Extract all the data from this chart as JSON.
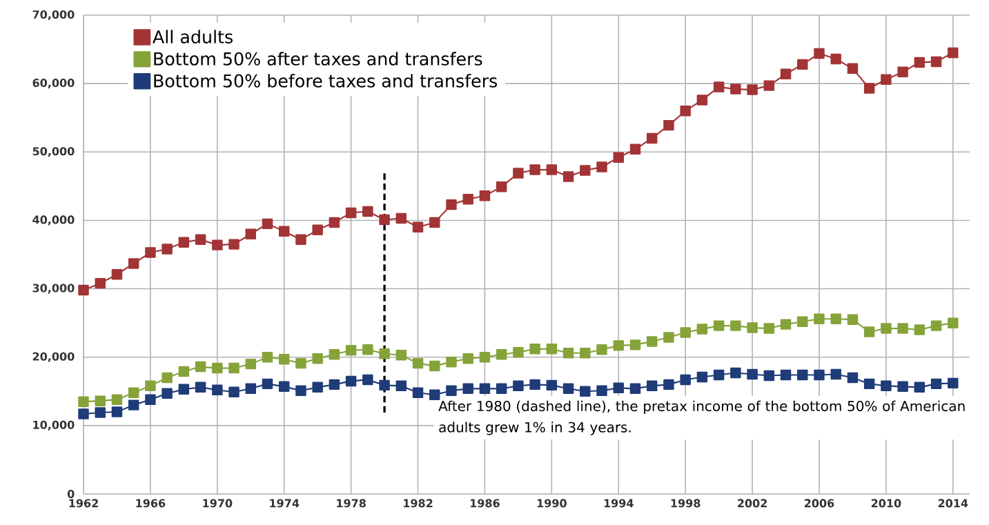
{
  "chart_data": {
    "type": "line",
    "x": [
      1962,
      1963,
      1964,
      1965,
      1966,
      1967,
      1968,
      1969,
      1970,
      1971,
      1972,
      1973,
      1974,
      1975,
      1976,
      1977,
      1978,
      1979,
      1980,
      1981,
      1982,
      1983,
      1984,
      1985,
      1986,
      1987,
      1988,
      1989,
      1990,
      1991,
      1992,
      1993,
      1994,
      1995,
      1996,
      1997,
      1998,
      1999,
      2000,
      2001,
      2002,
      2003,
      2004,
      2005,
      2006,
      2007,
      2008,
      2009,
      2010,
      2011,
      2012,
      2013,
      2014
    ],
    "series": [
      {
        "name": "All adults",
        "color": "#a33436",
        "values": [
          29800,
          30800,
          32100,
          33700,
          35300,
          35800,
          36800,
          37200,
          36400,
          36500,
          38000,
          39500,
          38400,
          37200,
          38600,
          39700,
          41100,
          41300,
          40100,
          40300,
          39000,
          39700,
          42300,
          43100,
          43600,
          44900,
          46900,
          47400,
          47400,
          46400,
          47300,
          47800,
          49200,
          50400,
          52000,
          53900,
          56000,
          57600,
          59500,
          59200,
          59100,
          59700,
          61400,
          62800,
          64400,
          63600,
          62200,
          59300,
          60600,
          61700,
          63100,
          63200,
          64500
        ]
      },
      {
        "name": "Bottom 50% after taxes and transfers",
        "color": "#86a33a",
        "values": [
          13500,
          13600,
          13800,
          14800,
          15800,
          17000,
          17900,
          18600,
          18400,
          18400,
          19000,
          20000,
          19700,
          19100,
          19800,
          20400,
          21000,
          21100,
          20500,
          20300,
          19100,
          18700,
          19300,
          19800,
          20000,
          20400,
          20700,
          21200,
          21200,
          20600,
          20600,
          21100,
          21700,
          21800,
          22300,
          22900,
          23600,
          24100,
          24600,
          24600,
          24300,
          24200,
          24800,
          25200,
          25600,
          25600,
          25500,
          23700,
          24200,
          24200,
          24000,
          24600,
          25000
        ]
      },
      {
        "name": "Bottom 50% before taxes and transfers",
        "color": "#1f3c78",
        "values": [
          11700,
          11900,
          12000,
          13000,
          13800,
          14700,
          15300,
          15600,
          15200,
          14900,
          15400,
          16100,
          15700,
          15100,
          15600,
          16000,
          16500,
          16700,
          15900,
          15800,
          14800,
          14500,
          15100,
          15400,
          15400,
          15400,
          15800,
          16000,
          15900,
          15400,
          15000,
          15100,
          15500,
          15400,
          15800,
          16000,
          16700,
          17100,
          17400,
          17700,
          17500,
          17300,
          17400,
          17400,
          17400,
          17500,
          17000,
          16100,
          15800,
          15700,
          15600,
          16100,
          16200
        ]
      }
    ],
    "xlim": [
      1962,
      2015
    ],
    "ylim": [
      0,
      70000
    ],
    "xticks": [
      1962,
      1966,
      1970,
      1974,
      1978,
      1982,
      1986,
      1990,
      1994,
      1998,
      2002,
      2006,
      2010,
      2014
    ],
    "yticks": [
      {
        "value": 0,
        "label": "0"
      },
      {
        "value": 10000,
        "label": "10,000"
      },
      {
        "value": 20000,
        "label": "20,000"
      },
      {
        "value": 30000,
        "label": "30,000"
      },
      {
        "value": 40000,
        "label": "40,000"
      },
      {
        "value": 50000,
        "label": "50,000"
      },
      {
        "value": 60000,
        "label": "60,000"
      },
      {
        "value": 70000,
        "label": "70,000"
      }
    ],
    "grid": true,
    "legend": "top left",
    "marker": "square",
    "line_style": "solid",
    "ref_lines": [
      {
        "axis": "x",
        "value": 1980,
        "color": "#000000",
        "line_style": "dashed"
      }
    ],
    "annotations": [
      "After 1980 (dashed line), the pretax income of the bottom 50% of American adults grew 1% in 34 years."
    ]
  }
}
